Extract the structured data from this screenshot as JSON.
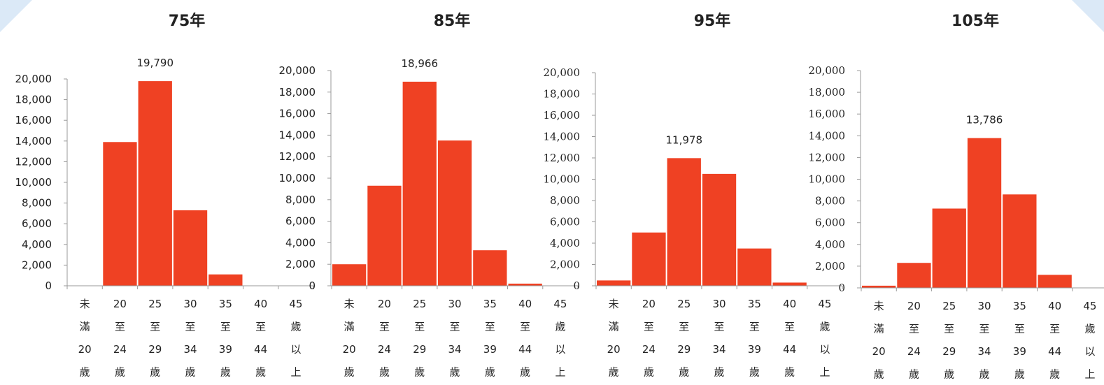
{
  "colors": {
    "bar": "#ef4123",
    "axis": "#999999",
    "corner": "#dbe9f7"
  },
  "chart_data": [
    {
      "type": "bar",
      "title": "75年",
      "categories": [
        [
          "未",
          "滿",
          "20",
          "歲"
        ],
        [
          "20",
          "至",
          "24",
          "歲"
        ],
        [
          "25",
          "至",
          "29",
          "歲"
        ],
        [
          "30",
          "至",
          "34",
          "歲"
        ],
        [
          "35",
          "至",
          "39",
          "歲"
        ],
        [
          "40",
          "至",
          "44",
          "歲"
        ],
        [
          "45",
          "歲",
          "以",
          "上"
        ]
      ],
      "values": [
        0,
        13900,
        19790,
        7300,
        1100,
        0,
        0
      ],
      "data_labels": {
        "2": "19,790"
      },
      "ylim": [
        0,
        20000
      ],
      "yticks": [
        "0",
        "2,000",
        "4,000",
        "6,000",
        "8,000",
        "10,000",
        "12,000",
        "14,000",
        "16,000",
        "18,000",
        "20,000"
      ],
      "xlabel": "",
      "ylabel": ""
    },
    {
      "type": "bar",
      "title": "85年",
      "categories": [
        [
          "未",
          "滿",
          "20",
          "歲"
        ],
        [
          "20",
          "至",
          "24",
          "歲"
        ],
        [
          "25",
          "至",
          "29",
          "歲"
        ],
        [
          "30",
          "至",
          "34",
          "歲"
        ],
        [
          "35",
          "至",
          "39",
          "歲"
        ],
        [
          "40",
          "至",
          "44",
          "歲"
        ],
        [
          "45",
          "歲",
          "以",
          "上"
        ]
      ],
      "values": [
        2000,
        9300,
        18966,
        13500,
        3300,
        200,
        0
      ],
      "data_labels": {
        "2": "18,966"
      },
      "ylim": [
        0,
        20000
      ],
      "yticks": [
        "0",
        "2,000",
        "4,000",
        "6,000",
        "8,000",
        "10,000",
        "12,000",
        "14,000",
        "16,000",
        "18,000",
        "20,000"
      ],
      "xlabel": "",
      "ylabel": ""
    },
    {
      "type": "bar",
      "title": "95年",
      "categories": [
        [
          "未",
          "滿",
          "20",
          "歲"
        ],
        [
          "20",
          "至",
          "24",
          "歲"
        ],
        [
          "25",
          "至",
          "29",
          "歲"
        ],
        [
          "30",
          "至",
          "34",
          "歲"
        ],
        [
          "35",
          "至",
          "39",
          "歲"
        ],
        [
          "40",
          "至",
          "44",
          "歲"
        ],
        [
          "45",
          "歲",
          "以",
          "上"
        ]
      ],
      "values": [
        500,
        5000,
        11978,
        10500,
        3500,
        300,
        0
      ],
      "data_labels": {
        "2": "11,978"
      },
      "ylim": [
        0,
        20000
      ],
      "yticks": [
        "0",
        "2,000",
        "4,000",
        "6,000",
        "8,000",
        "10,000",
        "12,000",
        "14,000",
        "16,000",
        "18,000",
        "20,000"
      ],
      "xlabel": "",
      "ylabel": ""
    },
    {
      "type": "bar",
      "title": "105年",
      "categories": [
        [
          "未",
          "滿",
          "20",
          "歲"
        ],
        [
          "20",
          "至",
          "24",
          "歲"
        ],
        [
          "25",
          "至",
          "29",
          "歲"
        ],
        [
          "30",
          "至",
          "34",
          "歲"
        ],
        [
          "35",
          "至",
          "39",
          "歲"
        ],
        [
          "40",
          "至",
          "44",
          "歲"
        ],
        [
          "45",
          "歲",
          "以",
          "上"
        ]
      ],
      "values": [
        200,
        2300,
        7300,
        13786,
        8600,
        1200,
        0
      ],
      "data_labels": {
        "3": "13,786"
      },
      "ylim": [
        0,
        20000
      ],
      "yticks": [
        "0",
        "2,000",
        "4,000",
        "6,000",
        "8,000",
        "10,000",
        "12,000",
        "14,000",
        "16,000",
        "18,000",
        "20,000"
      ],
      "xlabel": "",
      "ylabel": ""
    }
  ]
}
